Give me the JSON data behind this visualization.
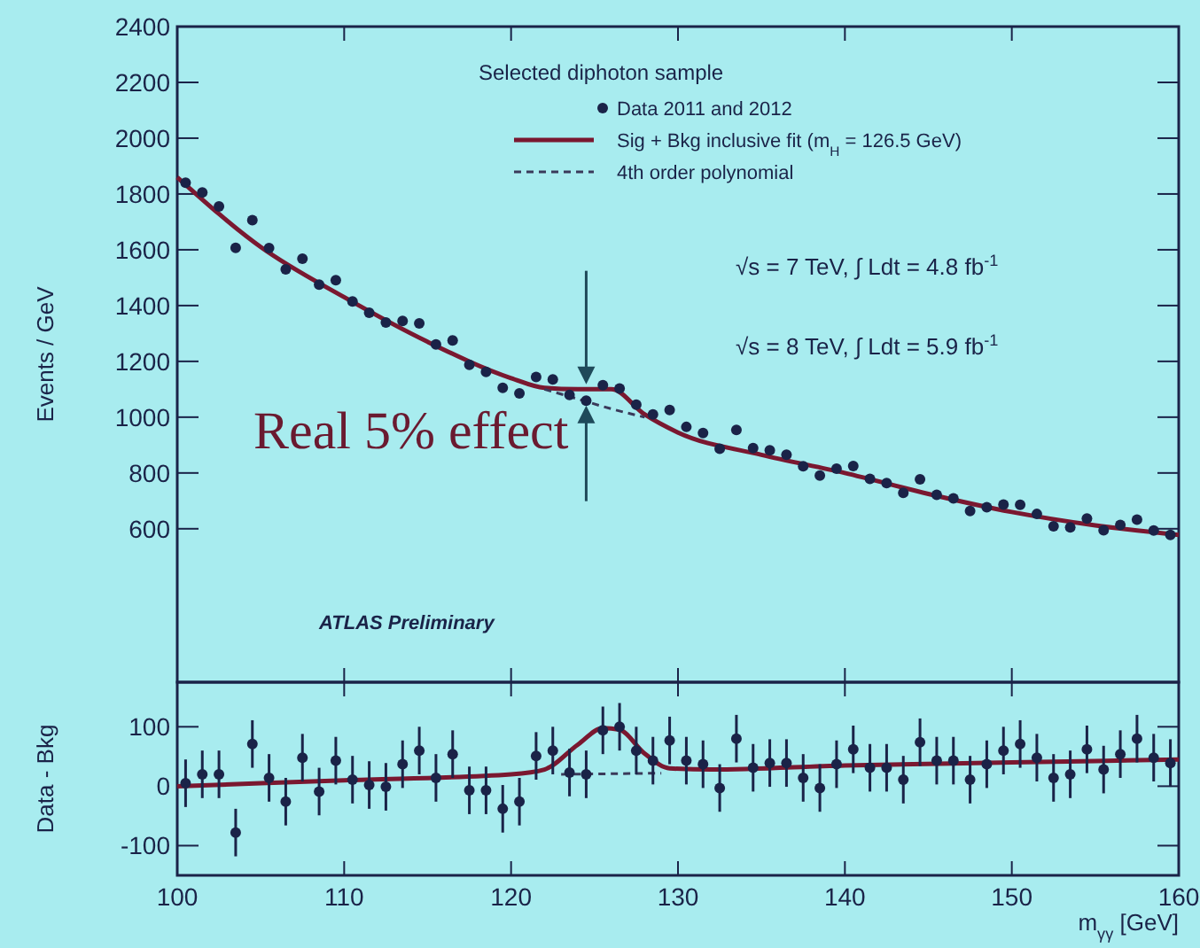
{
  "chart_data": [
    {
      "type": "scatter",
      "ylabel": "Events / GeV",
      "legend_title": "Selected diphoton sample",
      "legend": "top right",
      "tick_labels": "y",
      "xlim": [
        100,
        160
      ],
      "xticks": [
        100,
        110,
        120,
        130,
        140,
        150,
        160
      ],
      "ylim": [
        50,
        2400
      ],
      "yticks": [
        600,
        800,
        1000,
        1200,
        1400,
        1600,
        1800,
        2000,
        2200,
        2400
      ],
      "x": [
        100.5,
        101.5,
        102.5,
        103.5,
        104.5,
        105.5,
        106.5,
        107.5,
        108.5,
        109.5,
        110.5,
        111.5,
        112.5,
        113.5,
        114.5,
        115.5,
        116.5,
        117.5,
        118.5,
        119.5,
        120.5,
        121.5,
        122.5,
        123.5,
        124.5,
        125.5,
        126.5,
        127.5,
        128.5,
        129.5,
        130.5,
        131.5,
        132.5,
        133.5,
        134.5,
        135.5,
        136.5,
        137.5,
        138.5,
        139.5,
        140.5,
        141.5,
        142.5,
        143.5,
        144.5,
        145.5,
        146.5,
        147.5,
        148.5,
        149.5,
        150.5,
        151.5,
        152.5,
        153.5,
        154.5,
        155.5,
        156.5,
        157.5,
        158.5,
        159.5
      ],
      "series": [
        {
          "name": "Data 2011 and 2012",
          "marker": "circle",
          "color": "#1a2348",
          "values": [
            1840,
            1805,
            1755,
            1607,
            1706,
            1606,
            1530,
            1568,
            1475,
            1491,
            1415,
            1374,
            1339,
            1345,
            1336,
            1261,
            1275,
            1188,
            1162,
            1105,
            1085,
            1144,
            1135,
            1080,
            1059,
            1115,
            1103,
            1045,
            1010,
            1026,
            965,
            943,
            887,
            954,
            889,
            881,
            865,
            824,
            791,
            815,
            825,
            779,
            764,
            729,
            777,
            722,
            709,
            664,
            677,
            687,
            686,
            653,
            609,
            605,
            637,
            595,
            614,
            633,
            594,
            578
          ]
        },
        {
          "name": "Sig + Bkg inclusive fit (m$_{H}$ = 126.5 GeV)",
          "type": "line",
          "line_style": "solid",
          "color": "#7a1830",
          "x": [
            100,
            105,
            110,
            115,
            120,
            122,
            124,
            126,
            128,
            130,
            135,
            140,
            145,
            150,
            155,
            160
          ],
          "values": [
            1860,
            1610,
            1430,
            1270,
            1140,
            1105,
            1100,
            1100,
            1010,
            945,
            865,
            800,
            725,
            660,
            612,
            578
          ]
        },
        {
          "name": "4th order polynomial",
          "type": "line",
          "line_style": "dashed",
          "color": "#3a3a5a",
          "x": [
            122,
            124,
            126,
            128
          ],
          "values": [
            1100,
            1065,
            1030,
            1000
          ]
        }
      ],
      "annotations": [
        "√s = 7 TeV, ∫ Ldt = 4.8 fb$^{-1}$",
        "√s = 8 TeV, ∫ Ldt = 5.9 fb$^{-1}$",
        "ATLAS Preliminary",
        {
          "text": "Real 5% effect",
          "x": 124.5,
          "y": 1080
        }
      ]
    },
    {
      "type": "scatter",
      "ylabel": "Data - Bkg",
      "xlabel": "m$_{γγ}$ [GeV]",
      "xlim": [
        100,
        160
      ],
      "xticks": [
        100,
        110,
        120,
        130,
        140,
        150,
        160
      ],
      "ylim": [
        -150,
        175
      ],
      "yticks": [
        -100,
        0,
        100
      ],
      "x": [
        100.5,
        101.5,
        102.5,
        103.5,
        104.5,
        105.5,
        106.5,
        107.5,
        108.5,
        109.5,
        110.5,
        111.5,
        112.5,
        113.5,
        114.5,
        115.5,
        116.5,
        117.5,
        118.5,
        119.5,
        120.5,
        121.5,
        122.5,
        123.5,
        124.5,
        125.5,
        126.5,
        127.5,
        128.5,
        129.5,
        130.5,
        131.5,
        132.5,
        133.5,
        134.5,
        135.5,
        136.5,
        137.5,
        138.5,
        139.5,
        140.5,
        141.5,
        142.5,
        143.5,
        144.5,
        145.5,
        146.5,
        147.5,
        148.5,
        149.5,
        150.5,
        151.5,
        152.5,
        153.5,
        154.5,
        155.5,
        156.5,
        157.5,
        158.5,
        159.5
      ],
      "series": [
        {
          "marker": "circle",
          "color": "#1a2348",
          "values": [
            5,
            20,
            20,
            -78,
            71,
            14,
            -26,
            48,
            -9,
            43,
            11,
            2,
            -1,
            37,
            60,
            14,
            54,
            -7,
            -7,
            -38,
            -26,
            51,
            60,
            23,
            20,
            94,
            100,
            60,
            43,
            77,
            43,
            37,
            -3,
            80,
            31,
            39,
            39,
            14,
            -3,
            37,
            62,
            31,
            31,
            11,
            74,
            43,
            43,
            11,
            37,
            60,
            71,
            48,
            14,
            20,
            62,
            28,
            54,
            80,
            48,
            39
          ],
          "errors": [
            40,
            40,
            40,
            40,
            40,
            40,
            40,
            40,
            40,
            40,
            40,
            40,
            40,
            40,
            40,
            40,
            40,
            40,
            40,
            40,
            40,
            40,
            40,
            40,
            40,
            40,
            40,
            40,
            40,
            40,
            40,
            40,
            40,
            40,
            40,
            40,
            40,
            40,
            40,
            40,
            40,
            40,
            40,
            40,
            40,
            40,
            40,
            40,
            40,
            40,
            40,
            40,
            40,
            40,
            40,
            40,
            40,
            40,
            40,
            40
          ]
        },
        {
          "type": "line",
          "line_style": "solid",
          "color": "#7a1830",
          "x": [
            100,
            110,
            120,
            122,
            124,
            125.5,
            126.5,
            128,
            129.5,
            132,
            140,
            150,
            160
          ],
          "values": [
            0,
            10,
            20,
            28,
            70,
            98,
            95,
            55,
            30,
            28,
            35,
            40,
            45
          ]
        },
        {
          "type": "line",
          "line_style": "dashed",
          "color": "#3a3a5a",
          "x": [
            123,
            129
          ],
          "values": [
            20,
            22
          ]
        }
      ]
    }
  ]
}
